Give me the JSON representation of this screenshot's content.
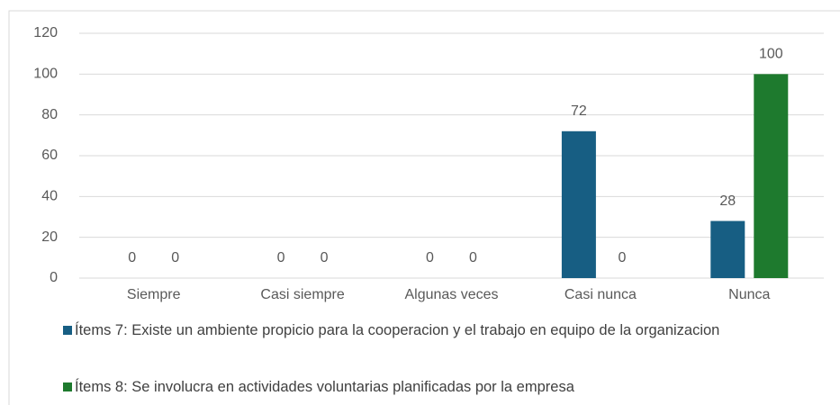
{
  "chart_data": {
    "type": "bar",
    "categories": [
      "Siempre",
      "Casi siempre",
      "Algunas veces",
      "Casi nunca",
      "Nunca"
    ],
    "series": [
      {
        "name": "Ítems 7:  Existe un ambiente propicio para la cooperacion y el trabajo en equipo de la organizacion",
        "color": "#175e83",
        "values": [
          0,
          0,
          0,
          72,
          28
        ]
      },
      {
        "name": "Ítems 8: Se involucra en actividades voluntarias planificadas por la empresa",
        "color": "#1e7a2e",
        "values": [
          0,
          0,
          0,
          0,
          100
        ]
      }
    ],
    "ylim": [
      0,
      120
    ],
    "yticks": [
      0,
      20,
      40,
      60,
      80,
      100,
      120
    ],
    "grid": true,
    "legend": "bottom"
  }
}
